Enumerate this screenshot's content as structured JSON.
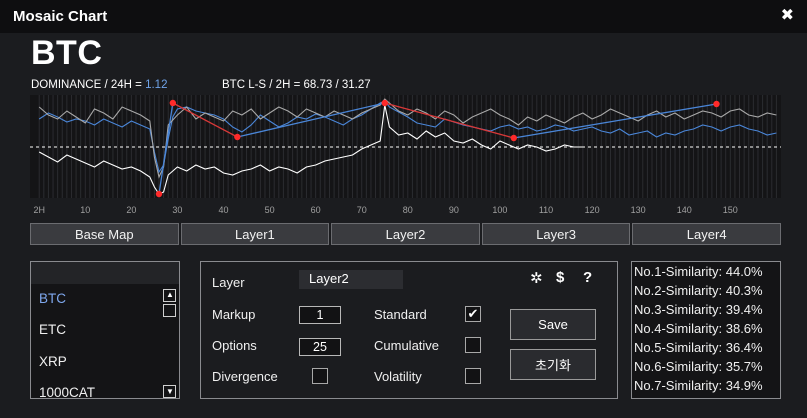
{
  "window": {
    "title": "Mosaic Chart",
    "close_glyph": "✖"
  },
  "coin": "BTC",
  "stats": {
    "dominance_label": "DOMINANCE / 24H = ",
    "dominance_value": "1.12",
    "ls_label": "BTC L-S / 2H = ",
    "ls_value": "68.73  /  31.27"
  },
  "colors": {
    "accent": "#6fa3e8",
    "marker": "#ff2a2a",
    "line_blue": "#4a86d8",
    "line_white": "#ffffff",
    "line_grey": "#a8a8a8"
  },
  "chart_data": {
    "type": "line",
    "x_ticks": [
      "2H",
      "10",
      "20",
      "30",
      "40",
      "50",
      "60",
      "70",
      "80",
      "90",
      "100",
      "110",
      "120",
      "130",
      "140",
      "150"
    ],
    "xlim": [
      -2,
      161
    ],
    "ylim": [
      0,
      100
    ],
    "baseline": 50,
    "series": [
      {
        "x": [
          0,
          2,
          4,
          6,
          8,
          10,
          12,
          14,
          16,
          18,
          20,
          22,
          24,
          25,
          26,
          27,
          28,
          29,
          30,
          32,
          34,
          36,
          38,
          40,
          42,
          44,
          46,
          48,
          50,
          52,
          54,
          56,
          58,
          60,
          62,
          64,
          66,
          68,
          70,
          72,
          74,
          75,
          76,
          78,
          80,
          82,
          84,
          86,
          88,
          90,
          92,
          94,
          96,
          98,
          100,
          102,
          104,
          106,
          108,
          110,
          112,
          114,
          116,
          118,
          120,
          122,
          124,
          126,
          128,
          130,
          132,
          134,
          136,
          138,
          140,
          142,
          144,
          146,
          148,
          150,
          152,
          154,
          156,
          158,
          160
        ],
        "y": [
          78,
          84,
          80,
          75,
          78,
          76,
          72,
          78,
          74,
          70,
          76,
          72,
          68,
          45,
          25,
          32,
          58,
          80,
          88,
          90,
          86,
          84,
          82,
          78,
          70,
          65,
          72,
          82,
          76,
          70,
          74,
          80,
          78,
          83,
          80,
          76,
          72,
          78,
          82,
          88,
          94,
          96,
          90,
          85,
          80,
          74,
          72,
          70,
          78,
          75,
          72,
          70,
          68,
          66,
          70,
          72,
          68,
          70,
          66,
          68,
          72,
          70,
          66,
          68,
          70,
          66,
          64,
          68,
          62,
          64,
          66,
          60,
          64,
          62,
          66,
          68,
          72,
          70,
          66,
          70,
          72,
          68,
          66,
          62,
          64
        ]
      },
      {
        "x": [
          0,
          2,
          4,
          6,
          8,
          10,
          12,
          14,
          16,
          18,
          20,
          22,
          24,
          25,
          26,
          27,
          28,
          30,
          32,
          34,
          36,
          38,
          40,
          42,
          44,
          46,
          48,
          50,
          52,
          54,
          56,
          58,
          60,
          62,
          64,
          66,
          68,
          70,
          72,
          74,
          75,
          76,
          78,
          80,
          82,
          84,
          86,
          88,
          90,
          92,
          94,
          96,
          98,
          100,
          102,
          104,
          106,
          108,
          110,
          112,
          114,
          116,
          118,
          120,
          122,
          124,
          126,
          128,
          130,
          132,
          134,
          136,
          138,
          140,
          142,
          144,
          146,
          148,
          150,
          152,
          154,
          156,
          158,
          160
        ],
        "y": [
          90,
          82,
          78,
          86,
          80,
          74,
          88,
          84,
          78,
          90,
          86,
          82,
          76,
          40,
          20,
          30,
          72,
          82,
          90,
          78,
          84,
          80,
          76,
          86,
          82,
          88,
          78,
          84,
          90,
          86,
          80,
          88,
          84,
          80,
          86,
          82,
          78,
          84,
          88,
          92,
          98,
          94,
          86,
          82,
          88,
          84,
          78,
          86,
          82,
          74,
          80,
          84,
          88,
          82,
          78,
          72,
          80,
          76,
          82,
          78,
          74,
          80,
          84,
          78,
          82,
          88,
          84,
          80,
          76,
          82,
          86,
          80,
          84,
          78,
          82,
          86,
          84,
          80,
          86,
          88,
          82,
          80,
          84,
          82
        ]
      },
      {
        "x": [
          0,
          2,
          4,
          6,
          8,
          10,
          12,
          14,
          16,
          18,
          20,
          22,
          24,
          25,
          26,
          27,
          28,
          30,
          32,
          34,
          36,
          38,
          40,
          42,
          44,
          46,
          48,
          50,
          52,
          54,
          56,
          58,
          60,
          62,
          64,
          66,
          68,
          70,
          72,
          74,
          75,
          76,
          78,
          80,
          82,
          84,
          86,
          88,
          90,
          92,
          94,
          96,
          98,
          100,
          102,
          104,
          106,
          108,
          110,
          112,
          114,
          116,
          118
        ],
        "y": [
          45,
          40,
          35,
          42,
          38,
          34,
          30,
          36,
          32,
          28,
          30,
          26,
          20,
          10,
          3,
          5,
          22,
          30,
          26,
          32,
          28,
          30,
          24,
          22,
          26,
          28,
          32,
          26,
          30,
          28,
          24,
          30,
          32,
          36,
          38,
          40,
          42,
          48,
          52,
          56,
          92,
          70,
          62,
          64,
          58,
          66,
          60,
          64,
          56,
          54,
          58,
          52,
          48,
          56,
          52,
          48,
          52,
          50,
          46,
          48,
          52,
          50,
          50
        ]
      }
    ],
    "markers": [
      {
        "x": 26,
        "y": 3,
        "color": "red"
      },
      {
        "x": 29,
        "y": 94,
        "color": "red"
      },
      {
        "x": 43,
        "y": 60,
        "color": "red"
      },
      {
        "x": 75,
        "y": 94,
        "color": "red"
      },
      {
        "x": 103,
        "y": 59,
        "color": "red"
      },
      {
        "x": 147,
        "y": 93,
        "color": "red"
      }
    ],
    "segments": [
      {
        "from": 0,
        "to": 1,
        "color": "blue"
      },
      {
        "from": 1,
        "to": 2,
        "color": "red"
      },
      {
        "from": 2,
        "to": 3,
        "color": "blue"
      },
      {
        "from": 3,
        "to": 4,
        "color": "red"
      },
      {
        "from": 4,
        "to": 5,
        "color": "blue"
      }
    ]
  },
  "layer_buttons": [
    "Base Map",
    "Layer1",
    "Layer2",
    "Layer3",
    "Layer4"
  ],
  "coin_list": {
    "items": [
      "BTC",
      "ETC",
      "XRP",
      "1000CAT"
    ],
    "selected": "BTC"
  },
  "panel": {
    "layer_label": "Layer",
    "layer_value": "Layer2",
    "markup_label": "Markup",
    "markup_value": "1",
    "options_label": "Options",
    "options_value": "25",
    "divergence_label": "Divergence",
    "standard_label": "Standard",
    "cumulative_label": "Cumulative",
    "volatility_label": "Volatility",
    "standard_checked": "✔",
    "save_label": "Save",
    "reset_label": "초기화",
    "icons": [
      "gear-icon",
      "dollar-icon",
      "help-icon"
    ],
    "icon_glyphs": {
      "gear": "✲",
      "dollar": "$",
      "help": "?"
    }
  },
  "similarity": [
    "No.1-Similarity: 44.0%",
    "No.2-Similarity: 40.3%",
    "No.3-Similarity: 39.4%",
    "No.4-Similarity: 38.6%",
    "No.5-Similarity: 36.4%",
    "No.6-Similarity: 35.7%",
    "No.7-Similarity: 34.9%"
  ]
}
